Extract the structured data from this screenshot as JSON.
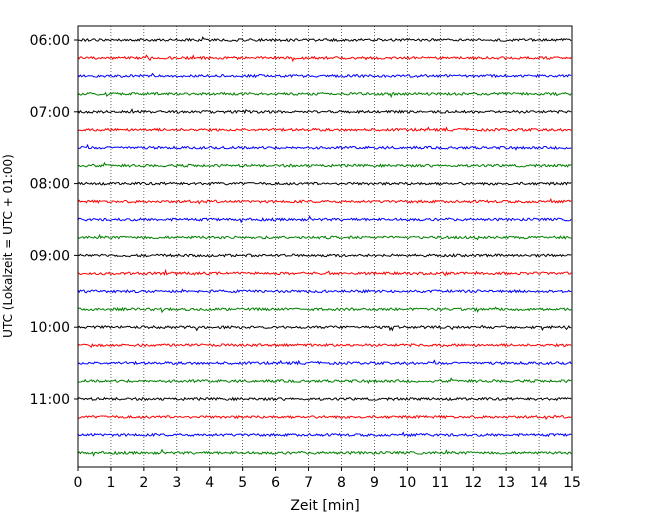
{
  "chart_data": {
    "type": "line",
    "title": "",
    "xlabel": "Zeit  [min]",
    "ylabel": "UTC (Lokalzeit = UTC + 01:00)",
    "xlim": [
      0,
      15
    ],
    "x_ticks": [
      "0",
      "1",
      "2",
      "3",
      "4",
      "5",
      "6",
      "7",
      "8",
      "9",
      "10",
      "11",
      "12",
      "13",
      "14",
      "15"
    ],
    "y_tick_labels": [
      "06:00",
      "07:00",
      "08:00",
      "09:00",
      "10:00",
      "11:00"
    ],
    "y_label_trace_index": [
      0,
      4,
      8,
      12,
      16,
      20
    ],
    "grid": "vertical dotted",
    "legend": "none",
    "trace_count": 24,
    "trace_interval_minutes": 15,
    "first_trace_time": "06:00",
    "trace_colors": [
      "#000000",
      "#ff0000",
      "#0000ff",
      "#008000"
    ],
    "series": [
      {
        "start": "06:00",
        "color": "#000000"
      },
      {
        "start": "06:15",
        "color": "#ff0000"
      },
      {
        "start": "06:30",
        "color": "#0000ff"
      },
      {
        "start": "06:45",
        "color": "#008000"
      },
      {
        "start": "07:00",
        "color": "#000000"
      },
      {
        "start": "07:15",
        "color": "#ff0000"
      },
      {
        "start": "07:30",
        "color": "#0000ff"
      },
      {
        "start": "07:45",
        "color": "#008000"
      },
      {
        "start": "08:00",
        "color": "#000000"
      },
      {
        "start": "08:15",
        "color": "#ff0000"
      },
      {
        "start": "08:30",
        "color": "#0000ff"
      },
      {
        "start": "08:45",
        "color": "#008000"
      },
      {
        "start": "09:00",
        "color": "#000000"
      },
      {
        "start": "09:15",
        "color": "#ff0000"
      },
      {
        "start": "09:30",
        "color": "#0000ff"
      },
      {
        "start": "09:45",
        "color": "#008000"
      },
      {
        "start": "10:00",
        "color": "#000000"
      },
      {
        "start": "10:15",
        "color": "#ff0000"
      },
      {
        "start": "10:30",
        "color": "#0000ff"
      },
      {
        "start": "10:45",
        "color": "#008000"
      },
      {
        "start": "11:00",
        "color": "#000000"
      },
      {
        "start": "11:15",
        "color": "#ff0000"
      },
      {
        "start": "11:30",
        "color": "#0000ff"
      },
      {
        "start": "11:45",
        "color": "#008000"
      }
    ]
  }
}
